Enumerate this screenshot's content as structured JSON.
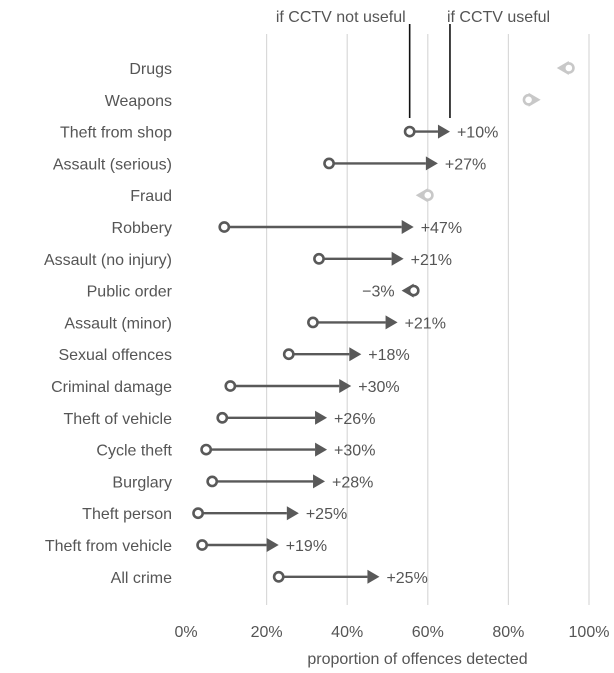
{
  "chart_data": {
    "type": "dumbbell",
    "xlabel": "proportion of offences detected",
    "xlim": [
      0,
      100
    ],
    "xticks": [
      0,
      20,
      40,
      60,
      80,
      100
    ],
    "tick_suffix": "%",
    "grid": true,
    "annotations": {
      "not_useful": {
        "label": "if CCTV not useful",
        "x": 55.5
      },
      "useful": {
        "label": "if CCTV useful",
        "x": 65.5
      }
    },
    "colors": {
      "main": "#595959",
      "faded": "#c8c8c8",
      "grid": "#d9d9d9",
      "text": "#555555"
    },
    "rows": [
      {
        "category": "Drugs",
        "start": 95,
        "end": 92,
        "change": "",
        "faded": true
      },
      {
        "category": "Weapons",
        "start": 85,
        "end": 88,
        "change": "",
        "faded": true
      },
      {
        "category": "Theft from shop",
        "start": 55.5,
        "end": 65.5,
        "change": "+10%",
        "faded": false
      },
      {
        "category": "Assault (serious)",
        "start": 35.5,
        "end": 62.5,
        "change": "+27%",
        "faded": false
      },
      {
        "category": "Fraud",
        "start": 60,
        "end": 57,
        "change": "",
        "faded": true
      },
      {
        "category": "Robbery",
        "start": 9.5,
        "end": 56.5,
        "change": "+47%",
        "faded": false
      },
      {
        "category": "Assault (no injury)",
        "start": 33,
        "end": 54,
        "change": "+21%",
        "faded": false
      },
      {
        "category": "Public order",
        "start": 56.5,
        "end": 53.5,
        "change": "−3%",
        "faded": false
      },
      {
        "category": "Assault (minor)",
        "start": 31.5,
        "end": 52.5,
        "change": "+21%",
        "faded": false
      },
      {
        "category": "Sexual offences",
        "start": 25.5,
        "end": 43.5,
        "change": "+18%",
        "faded": false
      },
      {
        "category": "Criminal damage",
        "start": 11,
        "end": 41,
        "change": "+30%",
        "faded": false
      },
      {
        "category": "Theft of vehicle",
        "start": 9,
        "end": 35,
        "change": "+26%",
        "faded": false
      },
      {
        "category": "Cycle theft",
        "start": 5,
        "end": 35,
        "change": "+30%",
        "faded": false
      },
      {
        "category": "Burglary",
        "start": 6.5,
        "end": 34.5,
        "change": "+28%",
        "faded": false
      },
      {
        "category": "Theft person",
        "start": 3,
        "end": 28,
        "change": "+25%",
        "faded": false
      },
      {
        "category": "Theft from vehicle",
        "start": 4,
        "end": 23,
        "change": "+19%",
        "faded": false
      },
      {
        "category": "All crime",
        "start": 23,
        "end": 48,
        "change": "+25%",
        "faded": false
      }
    ]
  }
}
